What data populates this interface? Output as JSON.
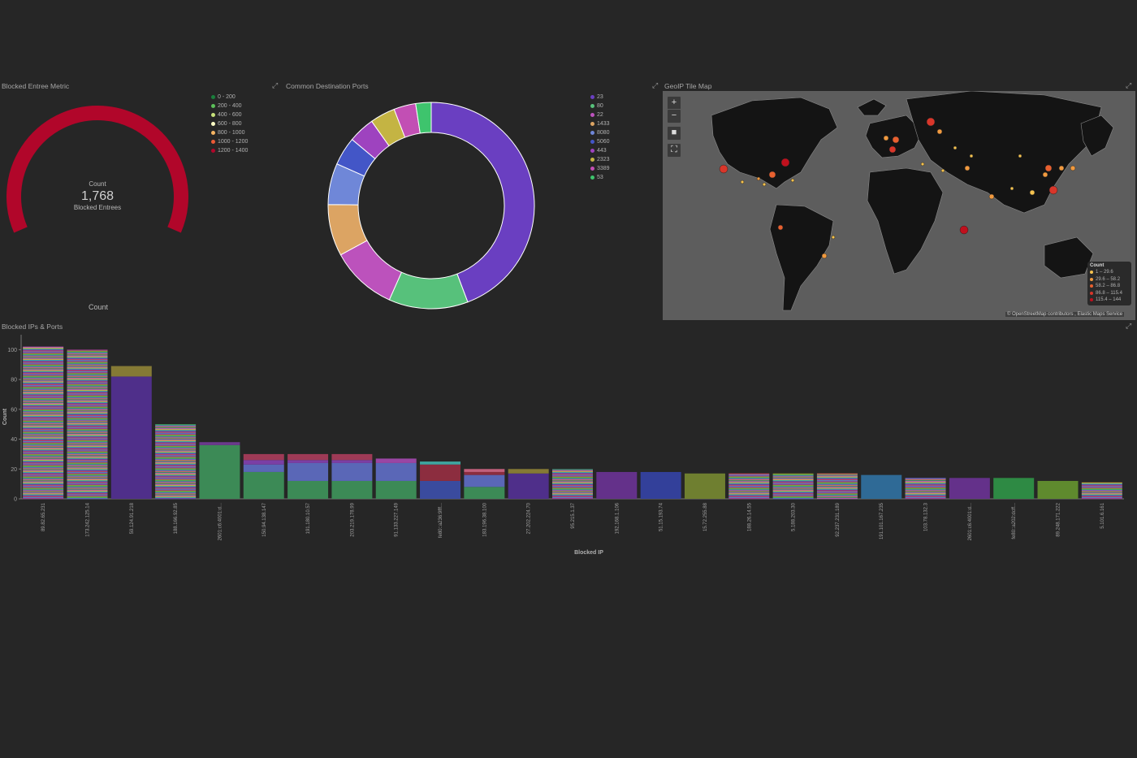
{
  "metric_panel": {
    "title": "Blocked Entree Metric",
    "gauge_label_top": "Count",
    "gauge_value": "1,768",
    "gauge_label_bottom": "Blocked Entrees",
    "footer_label": "Count",
    "gauge_color": "#b1062a",
    "legend": [
      {
        "label": "0 - 200",
        "color": "#1a7f3c"
      },
      {
        "label": "200 - 400",
        "color": "#5bbf59"
      },
      {
        "label": "400 - 600",
        "color": "#c8e37b"
      },
      {
        "label": "600 - 800",
        "color": "#fdfdc5"
      },
      {
        "label": "800 - 1000",
        "color": "#f5b462"
      },
      {
        "label": "1000 - 1200",
        "color": "#ea5a36"
      },
      {
        "label": "1200 - 1400",
        "color": "#b1062a"
      }
    ]
  },
  "ports_panel": {
    "title": "Common Destination Ports",
    "chart_data": {
      "type": "pie",
      "donut": true,
      "slices": [
        {
          "label": "23",
          "value": 43.8,
          "color": "#6a3fc1"
        },
        {
          "label": "80",
          "value": 12.3,
          "color": "#57c17b"
        },
        {
          "label": "22",
          "value": 10.3,
          "color": "#bc52bc"
        },
        {
          "label": "1433",
          "value": 8.0,
          "color": "#dca463"
        },
        {
          "label": "8080",
          "value": 6.4,
          "color": "#6f87d8"
        },
        {
          "label": "5060",
          "value": 4.4,
          "color": "#4356c7"
        },
        {
          "label": "443",
          "value": 4.1,
          "color": "#9e43bf"
        },
        {
          "label": "2323",
          "value": 3.9,
          "color": "#c4b443"
        },
        {
          "label": "3389",
          "value": 3.4,
          "color": "#c24fb4"
        },
        {
          "label": "53",
          "value": 2.4,
          "color": "#3ec46d"
        }
      ]
    }
  },
  "map_panel": {
    "title": "GeoIP Tile Map",
    "zoom_in": "+",
    "zoom_out": "−",
    "legend_title": "Count",
    "legend": [
      {
        "label": "1 – 29.6",
        "color": "#f6c34f"
      },
      {
        "label": "29.6 – 58.2",
        "color": "#f19a3f"
      },
      {
        "label": "58.2 – 86.8",
        "color": "#e8602f"
      },
      {
        "label": "86.8 – 115.4",
        "color": "#d9362a"
      },
      {
        "label": "115.4 – 144",
        "color": "#c0101d"
      }
    ],
    "attribution": "© OpenStreetMap contributors , Elastic Maps Service"
  },
  "bars_panel": {
    "title": "Blocked IPs & Ports",
    "chart_data": {
      "type": "bar",
      "stacked": true,
      "xlabel": "Blocked IP",
      "ylabel": "Count",
      "ylim": [
        0,
        110
      ],
      "yticks": [
        0,
        20,
        40,
        60,
        80,
        100
      ],
      "categories": [
        "89.82.65.231",
        "173.242.125.14",
        "59.124.91.218",
        "188.166.92.85",
        "2601:c6:4001:d...",
        "150.94.138.147",
        "191.180.10.57",
        "203.219.178.99",
        "91.133.227.149",
        "fe80::a236:9fff...",
        "183.196.38.100",
        "27.202.224.70",
        "95.215.1.37",
        "192.168.1.106",
        "51.15.193.74",
        "15.72.255.88",
        "188.26.14.55",
        "5.188.203.30",
        "92.237.231.189",
        "191.101.167.235",
        "103.78.132.3",
        "2601:c6:4001:d...",
        "fe80::a202:dcff...",
        "89.248.171.222",
        "5.101.6.161"
      ],
      "totals": [
        102,
        100,
        89,
        50,
        38,
        30,
        30,
        30,
        27,
        25,
        20,
        20,
        20,
        18,
        18,
        17,
        17,
        17,
        17,
        16,
        14,
        14,
        14,
        12,
        11
      ],
      "segments": [
        {
          "kind": "many"
        },
        {
          "kind": "many"
        },
        {
          "kind": "solid",
          "parts": [
            [
              82,
              "#4f2f8a"
            ],
            [
              7,
              "#857a35"
            ]
          ]
        },
        {
          "kind": "many"
        },
        {
          "kind": "solid",
          "parts": [
            [
              36,
              "#3c8a56"
            ],
            [
              2,
              "#6b3a8c"
            ]
          ]
        },
        {
          "kind": "solid",
          "parts": [
            [
              18,
              "#3c8a56"
            ],
            [
              5,
              "#5a67b7"
            ],
            [
              3,
              "#7b3fa5"
            ],
            [
              4,
              "#9e3a56"
            ]
          ]
        },
        {
          "kind": "solid",
          "parts": [
            [
              12,
              "#3c8a56"
            ],
            [
              12,
              "#5a67b7"
            ],
            [
              2,
              "#7b3fa5"
            ],
            [
              4,
              "#9e3a56"
            ]
          ]
        },
        {
          "kind": "solid",
          "parts": [
            [
              12,
              "#3c8a56"
            ],
            [
              12,
              "#5a67b7"
            ],
            [
              2,
              "#7b3fa5"
            ],
            [
              4,
              "#9e3a56"
            ]
          ]
        },
        {
          "kind": "solid",
          "parts": [
            [
              12,
              "#3c8a56"
            ],
            [
              12,
              "#5a67b7"
            ],
            [
              3,
              "#9a46a4"
            ]
          ]
        },
        {
          "kind": "solid",
          "parts": [
            [
              12,
              "#3a4b9e"
            ],
            [
              11,
              "#8c2d3f"
            ],
            [
              2,
              "#3fa5a0"
            ]
          ]
        },
        {
          "kind": "solid",
          "parts": [
            [
              8,
              "#3c8a56"
            ],
            [
              8,
              "#5a67b7"
            ],
            [
              2,
              "#8c2d3f"
            ],
            [
              2,
              "#c2607c"
            ]
          ]
        },
        {
          "kind": "solid",
          "parts": [
            [
              17,
              "#4f2f8a"
            ],
            [
              3,
              "#857a35"
            ]
          ]
        },
        {
          "kind": "many"
        },
        {
          "kind": "solid",
          "parts": [
            [
              18,
              "#64318a"
            ]
          ]
        },
        {
          "kind": "solid",
          "parts": [
            [
              18,
              "#33409a"
            ]
          ]
        },
        {
          "kind": "solid",
          "parts": [
            [
              17,
              "#6f7f30"
            ]
          ]
        },
        {
          "kind": "many"
        },
        {
          "kind": "many"
        },
        {
          "kind": "many"
        },
        {
          "kind": "solid",
          "parts": [
            [
              16,
              "#2f6a96"
            ]
          ]
        },
        {
          "kind": "many"
        },
        {
          "kind": "solid",
          "parts": [
            [
              14,
              "#64318a"
            ]
          ]
        },
        {
          "kind": "solid",
          "parts": [
            [
              14,
              "#2e8a44"
            ]
          ]
        },
        {
          "kind": "solid",
          "parts": [
            [
              12,
              "#5f8a2e"
            ]
          ]
        },
        {
          "kind": "many"
        }
      ]
    }
  }
}
